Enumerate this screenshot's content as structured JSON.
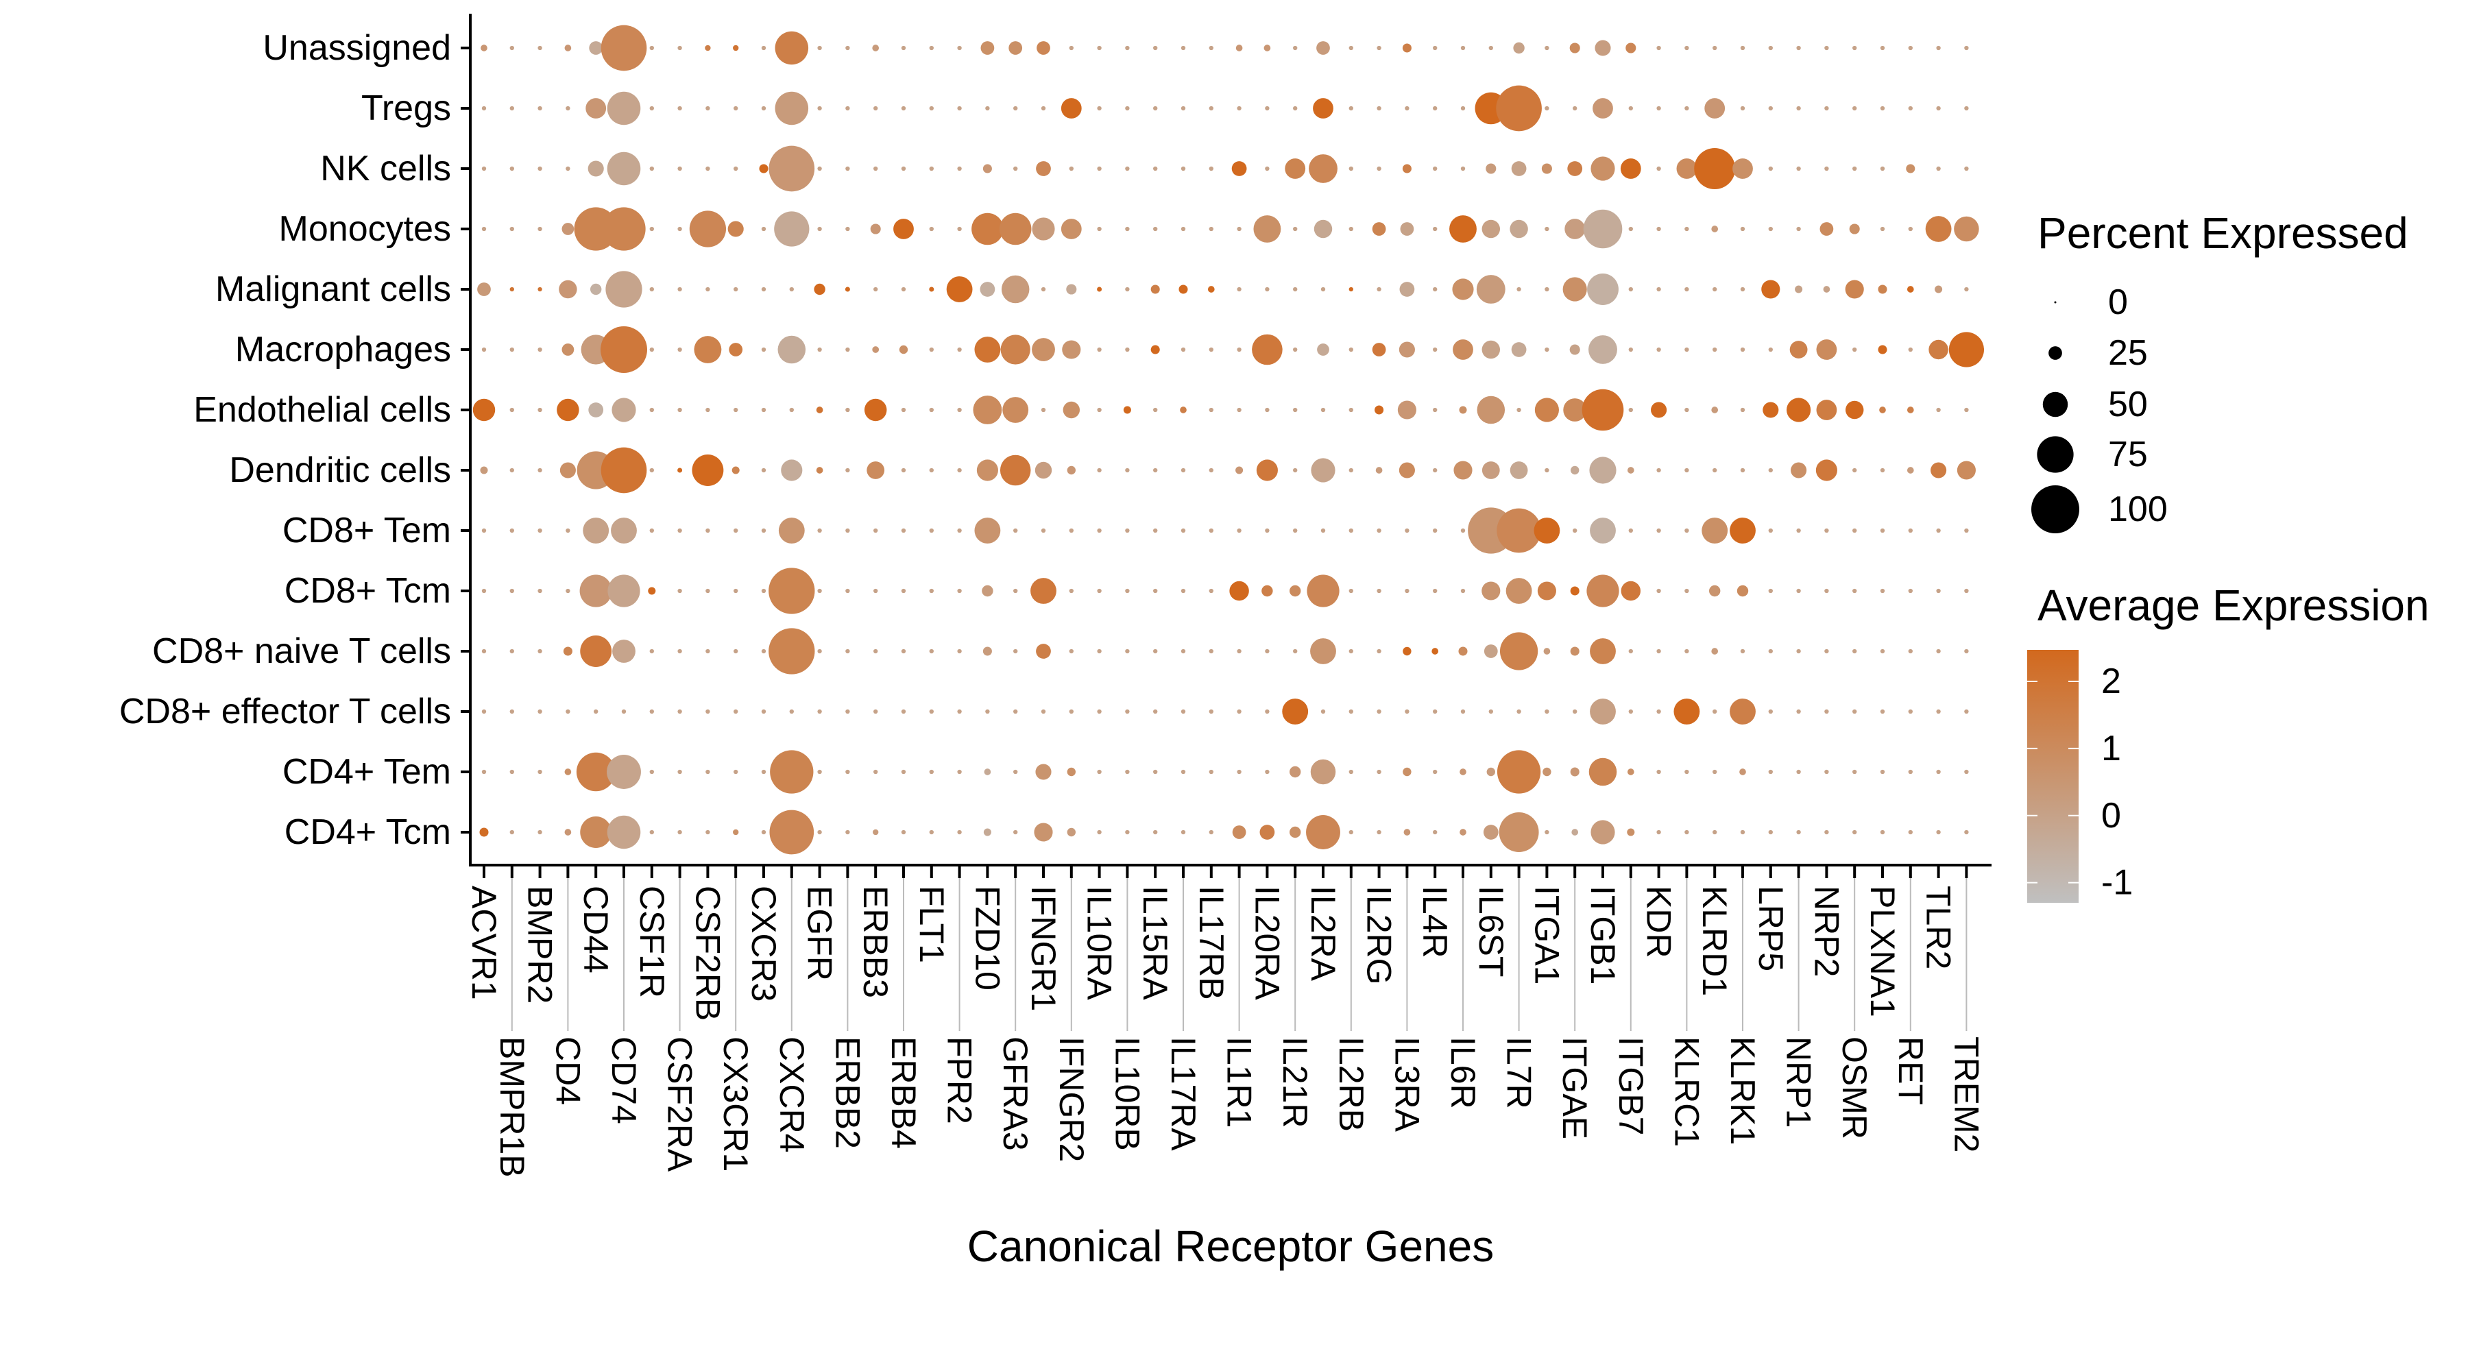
{
  "chart_data": {
    "type": "dot",
    "title": "",
    "xlabel": "Canonical Receptor Genes",
    "ylabel": "",
    "genes": [
      "ACVR1",
      "BMPR1B",
      "BMPR2",
      "CD4",
      "CD44",
      "CD74",
      "CSF1R",
      "CSF2RA",
      "CSF2RB",
      "CX3CR1",
      "CXCR3",
      "CXCR4",
      "EGFR",
      "ERBB2",
      "ERBB3",
      "ERBB4",
      "FLT1",
      "FPR2",
      "FZD10",
      "GFRA3",
      "IFNGR1",
      "IFNGR2",
      "IL10RA",
      "IL10RB",
      "IL15RA",
      "IL17RA",
      "IL17RB",
      "IL1R1",
      "IL20RA",
      "IL21R",
      "IL2RA",
      "IL2RB",
      "IL2RG",
      "IL3RA",
      "IL4R",
      "IL6R",
      "IL6ST",
      "IL7R",
      "ITGA1",
      "ITGAE",
      "ITGB1",
      "ITGB7",
      "KDR",
      "KLRC1",
      "KLRD1",
      "KLRK1",
      "LRP5",
      "NRP1",
      "NRP2",
      "OSMR",
      "PLXNA1",
      "RET",
      "TLR2",
      "TREM2"
    ],
    "cell_types": [
      "Unassigned",
      "Tregs",
      "NK cells",
      "Monocytes",
      "Malignant cells",
      "Macrophages",
      "Endothelial cells",
      "Dendritic cells",
      "CD8+ Tem",
      "CD8+ Tcm",
      "CD8+ naive T cells",
      "CD8+ effector T cells",
      "CD4+ Tem",
      "CD4+ Tcm"
    ],
    "other_cells": {
      "pct_expressed": 5,
      "avg_expression": 0
    },
    "dots_format": [
      "gene_index",
      "pct_expressed",
      "avg_expression"
    ],
    "dots": [
      [
        [
          0,
          10,
          0.5
        ],
        [
          3,
          10,
          0.5
        ],
        [
          4,
          25,
          -0.3
        ],
        [
          5,
          95,
          1.2
        ],
        [
          8,
          8,
          1.5
        ],
        [
          9,
          8,
          2
        ],
        [
          11,
          68,
          1.5
        ],
        [
          14,
          10,
          0.3
        ],
        [
          18,
          25,
          0.8
        ],
        [
          19,
          25,
          0.8
        ],
        [
          20,
          25,
          1.2
        ],
        [
          27,
          10,
          0.5
        ],
        [
          28,
          10,
          0.5
        ],
        [
          30,
          25,
          0.3
        ],
        [
          33,
          15,
          1.5
        ],
        [
          37,
          20,
          0
        ],
        [
          39,
          18,
          1
        ],
        [
          40,
          30,
          0.2
        ],
        [
          41,
          18,
          1.2
        ]
      ],
      [
        [
          4,
          40,
          0.5
        ],
        [
          5,
          68,
          -0.1
        ],
        [
          11,
          68,
          0.3
        ],
        [
          21,
          40,
          2.5
        ],
        [
          30,
          40,
          2.5
        ],
        [
          36,
          65,
          2.5
        ],
        [
          37,
          95,
          1.8
        ],
        [
          40,
          40,
          0.5
        ],
        [
          44,
          40,
          0.5
        ]
      ],
      [
        [
          4,
          30,
          -0.2
        ],
        [
          5,
          68,
          -0.2
        ],
        [
          10,
          15,
          2.5
        ],
        [
          11,
          95,
          0.5
        ],
        [
          18,
          15,
          0.5
        ],
        [
          20,
          28,
          1.2
        ],
        [
          27,
          28,
          2.5
        ],
        [
          29,
          40,
          1.3
        ],
        [
          30,
          58,
          1.2
        ],
        [
          33,
          15,
          1.5
        ],
        [
          36,
          18,
          0.3
        ],
        [
          37,
          28,
          0
        ],
        [
          38,
          18,
          0.8
        ],
        [
          39,
          28,
          1.5
        ],
        [
          40,
          48,
          0.8
        ],
        [
          41,
          40,
          2.5
        ],
        [
          43,
          40,
          1
        ],
        [
          44,
          85,
          2.5
        ],
        [
          45,
          40,
          0.8
        ],
        [
          51,
          15,
          0.8
        ]
      ],
      [
        [
          3,
          22,
          0.5
        ],
        [
          4,
          90,
          1.3
        ],
        [
          5,
          90,
          1.3
        ],
        [
          8,
          75,
          1.2
        ],
        [
          9,
          30,
          1.3
        ],
        [
          11,
          72,
          -0.3
        ],
        [
          14,
          18,
          0.5
        ],
        [
          15,
          40,
          2.5
        ],
        [
          18,
          65,
          1.6
        ],
        [
          19,
          65,
          1.3
        ],
        [
          20,
          45,
          0.3
        ],
        [
          21,
          40,
          0.8
        ],
        [
          28,
          55,
          0.8
        ],
        [
          30,
          35,
          -0.2
        ],
        [
          32,
          25,
          1.3
        ],
        [
          33,
          25,
          0
        ],
        [
          35,
          55,
          2.5
        ],
        [
          36,
          35,
          0.1
        ],
        [
          37,
          35,
          -0.2
        ],
        [
          39,
          40,
          0.2
        ],
        [
          40,
          80,
          -0.4
        ],
        [
          44,
          10,
          0.3
        ],
        [
          48,
          25,
          1
        ],
        [
          49,
          18,
          0.8
        ],
        [
          52,
          52,
          1.6
        ],
        [
          53,
          50,
          0.9
        ]
      ],
      [
        [
          0,
          25,
          0.4
        ],
        [
          1,
          5,
          2
        ],
        [
          2,
          5,
          2
        ],
        [
          3,
          35,
          0.5
        ],
        [
          4,
          20,
          -0.6
        ],
        [
          5,
          75,
          -0.1
        ],
        [
          12,
          20,
          2.5
        ],
        [
          13,
          6,
          2.5
        ],
        [
          16,
          6,
          2.5
        ],
        [
          17,
          52,
          2.5
        ],
        [
          18,
          28,
          -0.5
        ],
        [
          19,
          56,
          0.3
        ],
        [
          21,
          18,
          -0.3
        ],
        [
          22,
          6,
          2.5
        ],
        [
          24,
          15,
          1.5
        ],
        [
          25,
          15,
          2.5
        ],
        [
          26,
          10,
          2.5
        ],
        [
          31,
          5,
          2.5
        ],
        [
          33,
          28,
          -0.2
        ],
        [
          35,
          42,
          0.8
        ],
        [
          36,
          58,
          0.3
        ],
        [
          39,
          48,
          0.8
        ],
        [
          40,
          64,
          -0.6
        ],
        [
          46,
          36,
          2.5
        ],
        [
          47,
          12,
          0
        ],
        [
          48,
          10,
          0
        ],
        [
          49,
          36,
          1.3
        ],
        [
          50,
          15,
          1.3
        ],
        [
          51,
          10,
          2.5
        ],
        [
          52,
          12,
          0.3
        ]
      ],
      [
        [
          3,
          22,
          0.8
        ],
        [
          4,
          60,
          0.3
        ],
        [
          5,
          97,
          1.8
        ],
        [
          8,
          55,
          1.4
        ],
        [
          9,
          25,
          1.6
        ],
        [
          11,
          56,
          -0.4
        ],
        [
          14,
          10,
          0.5
        ],
        [
          15,
          14,
          0.8
        ],
        [
          18,
          52,
          2
        ],
        [
          19,
          60,
          1.4
        ],
        [
          20,
          46,
          0.8
        ],
        [
          21,
          36,
          0.6
        ],
        [
          24,
          15,
          2.5
        ],
        [
          28,
          62,
          1.8
        ],
        [
          30,
          22,
          -0.3
        ],
        [
          32,
          25,
          1.8
        ],
        [
          33,
          30,
          0.5
        ],
        [
          35,
          40,
          1
        ],
        [
          36,
          35,
          0
        ],
        [
          37,
          28,
          -0.3
        ],
        [
          39,
          18,
          0
        ],
        [
          40,
          58,
          -0.5
        ],
        [
          47,
          34,
          1.4
        ],
        [
          48,
          40,
          1
        ],
        [
          50,
          15,
          2.5
        ],
        [
          52,
          38,
          1.6
        ],
        [
          53,
          72,
          2.5
        ]
      ],
      [
        [
          0,
          44,
          2.5
        ],
        [
          3,
          44,
          2.5
        ],
        [
          4,
          28,
          -0.6
        ],
        [
          5,
          48,
          -0.2
        ],
        [
          12,
          10,
          2
        ],
        [
          14,
          44,
          2.5
        ],
        [
          18,
          58,
          1
        ],
        [
          19,
          52,
          1
        ],
        [
          21,
          32,
          0.8
        ],
        [
          23,
          12,
          2.5
        ],
        [
          25,
          10,
          1.5
        ],
        [
          32,
          15,
          2.5
        ],
        [
          33,
          36,
          0.5
        ],
        [
          35,
          12,
          0.8
        ],
        [
          36,
          56,
          0.6
        ],
        [
          38,
          48,
          1.4
        ],
        [
          39,
          46,
          1.1
        ],
        [
          40,
          86,
          2.2
        ],
        [
          42,
          30,
          2.5
        ],
        [
          44,
          10,
          0.3
        ],
        [
          46,
          30,
          2.5
        ],
        [
          47,
          48,
          2.5
        ],
        [
          48,
          40,
          1.6
        ],
        [
          49,
          35,
          2.5
        ],
        [
          50,
          10,
          1.5
        ],
        [
          51,
          10,
          1.5
        ]
      ],
      [
        [
          0,
          12,
          0.3
        ],
        [
          3,
          30,
          0.8
        ],
        [
          4,
          78,
          0.8
        ],
        [
          5,
          95,
          2
        ],
        [
          7,
          6,
          2.5
        ],
        [
          8,
          64,
          2.5
        ],
        [
          9,
          12,
          1.3
        ],
        [
          11,
          42,
          -0.4
        ],
        [
          12,
          10,
          1.3
        ],
        [
          14,
          34,
          1
        ],
        [
          18,
          42,
          0.8
        ],
        [
          19,
          62,
          1.8
        ],
        [
          20,
          32,
          0.2
        ],
        [
          21,
          14,
          0.5
        ],
        [
          27,
          12,
          0.5
        ],
        [
          28,
          42,
          1.8
        ],
        [
          30,
          48,
          -0.1
        ],
        [
          32,
          10,
          0.3
        ],
        [
          33,
          30,
          1
        ],
        [
          35,
          36,
          0.8
        ],
        [
          36,
          34,
          0.2
        ],
        [
          37,
          34,
          -0.2
        ],
        [
          39,
          14,
          -0.3
        ],
        [
          40,
          54,
          -0.4
        ],
        [
          41,
          10,
          0.3
        ],
        [
          47,
          30,
          0.8
        ],
        [
          48,
          42,
          1.8
        ],
        [
          51,
          10,
          0.3
        ],
        [
          52,
          30,
          1.6
        ],
        [
          53,
          36,
          1
        ]
      ],
      [
        [
          4,
          52,
          0
        ],
        [
          5,
          52,
          -0.1
        ],
        [
          11,
          52,
          0.6
        ],
        [
          18,
          52,
          0.6
        ],
        [
          36,
          96,
          0.6
        ],
        [
          37,
          92,
          1.2
        ],
        [
          38,
          52,
          2.5
        ],
        [
          40,
          52,
          -0.6
        ],
        [
          44,
          52,
          0.8
        ],
        [
          45,
          52,
          2.5
        ]
      ],
      [
        [
          4,
          66,
          0.5
        ],
        [
          5,
          66,
          -0.1
        ],
        [
          6,
          12,
          2.5
        ],
        [
          11,
          96,
          1.3
        ],
        [
          18,
          20,
          0.3
        ],
        [
          20,
          52,
          1.8
        ],
        [
          27,
          38,
          2.5
        ],
        [
          28,
          20,
          1.5
        ],
        [
          29,
          20,
          1
        ],
        [
          30,
          66,
          1.2
        ],
        [
          36,
          36,
          0.6
        ],
        [
          37,
          52,
          0.8
        ],
        [
          38,
          36,
          1.5
        ],
        [
          39,
          15,
          2.5
        ],
        [
          40,
          66,
          1.2
        ],
        [
          41,
          38,
          1.8
        ],
        [
          44,
          20,
          0.6
        ],
        [
          45,
          20,
          1
        ]
      ],
      [
        [
          3,
          15,
          1.3
        ],
        [
          4,
          64,
          1.8
        ],
        [
          5,
          46,
          -0.1
        ],
        [
          11,
          96,
          1.3
        ],
        [
          18,
          15,
          0.3
        ],
        [
          20,
          28,
          1.5
        ],
        [
          30,
          52,
          0.6
        ],
        [
          33,
          14,
          2.5
        ],
        [
          34,
          10,
          2.5
        ],
        [
          35,
          15,
          1
        ],
        [
          36,
          25,
          0
        ],
        [
          37,
          78,
          1.4
        ],
        [
          38,
          10,
          0.3
        ],
        [
          39,
          15,
          0.8
        ],
        [
          40,
          52,
          1.3
        ],
        [
          44,
          10,
          0.3
        ]
      ],
      [
        [
          29,
          52,
          2.5
        ],
        [
          40,
          52,
          0.1
        ],
        [
          43,
          52,
          2.5
        ],
        [
          45,
          52,
          1.5
        ]
      ],
      [
        [
          3,
          10,
          0.8
        ],
        [
          4,
          80,
          1.5
        ],
        [
          5,
          70,
          -0.1
        ],
        [
          11,
          90,
          1.3
        ],
        [
          18,
          10,
          -0.3
        ],
        [
          20,
          30,
          0.6
        ],
        [
          21,
          14,
          0.8
        ],
        [
          29,
          20,
          0.5
        ],
        [
          30,
          50,
          0.3
        ],
        [
          33,
          14,
          0.8
        ],
        [
          35,
          10,
          0.5
        ],
        [
          36,
          14,
          0.3
        ],
        [
          37,
          90,
          1.6
        ],
        [
          38,
          14,
          0.6
        ],
        [
          39,
          15,
          0.5
        ],
        [
          40,
          56,
          1.3
        ],
        [
          41,
          10,
          0.8
        ],
        [
          45,
          10,
          0.5
        ]
      ],
      [
        [
          0,
          15,
          2.3
        ],
        [
          3,
          10,
          0.5
        ],
        [
          4,
          64,
          1.1
        ],
        [
          5,
          68,
          -0.1
        ],
        [
          9,
          8,
          0.8
        ],
        [
          11,
          92,
          1.2
        ],
        [
          14,
          8,
          0.3
        ],
        [
          18,
          12,
          -0.3
        ],
        [
          20,
          36,
          0.6
        ],
        [
          21,
          14,
          0.3
        ],
        [
          27,
          25,
          1
        ],
        [
          28,
          28,
          1.5
        ],
        [
          29,
          20,
          0.8
        ],
        [
          30,
          70,
          1.2
        ],
        [
          33,
          10,
          0.5
        ],
        [
          35,
          10,
          0.5
        ],
        [
          36,
          28,
          0.3
        ],
        [
          37,
          82,
          0.8
        ],
        [
          39,
          10,
          -0.3
        ],
        [
          40,
          48,
          0.3
        ],
        [
          41,
          12,
          0.8
        ]
      ]
    ],
    "size_legend": {
      "title": "Percent Expressed",
      "values": [
        0,
        25,
        50,
        75,
        100
      ],
      "labels": [
        "0",
        "25",
        "50",
        "75",
        "100"
      ]
    },
    "color_legend": {
      "title": "Average Expression",
      "ticks": [
        2,
        1,
        0,
        -1
      ],
      "labels": [
        "2",
        "1",
        "0",
        "-1"
      ],
      "range": [
        -1.3,
        2.47
      ],
      "low_color": "#c0c0c0",
      "high_color": "#d2691e"
    },
    "grid": false,
    "legend_position": "right"
  }
}
